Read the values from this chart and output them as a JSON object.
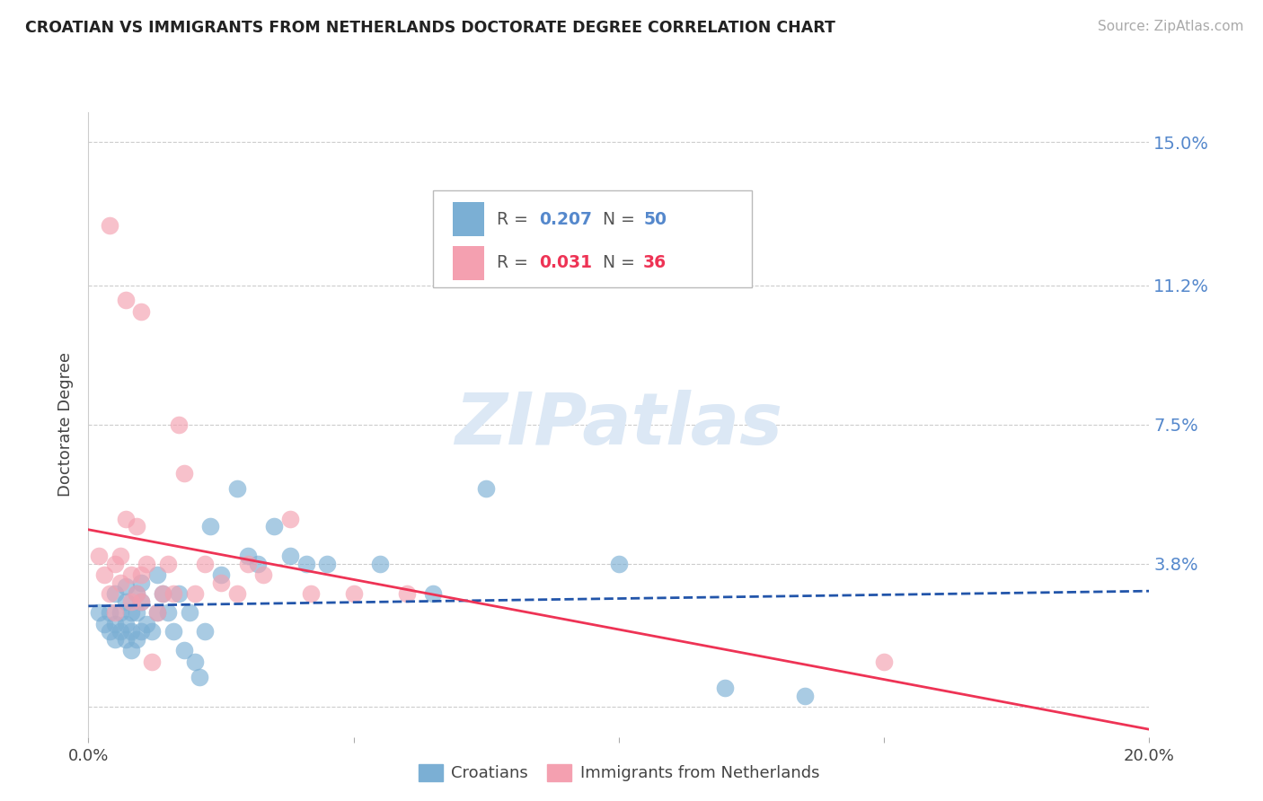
{
  "title": "CROATIAN VS IMMIGRANTS FROM NETHERLANDS DOCTORATE DEGREE CORRELATION CHART",
  "source": "Source: ZipAtlas.com",
  "ylabel": "Doctorate Degree",
  "xlim": [
    0.0,
    0.2
  ],
  "ylim": [
    -0.008,
    0.158
  ],
  "yticks": [
    0.0,
    0.038,
    0.075,
    0.112,
    0.15
  ],
  "ytick_labels": [
    "",
    "3.8%",
    "7.5%",
    "11.2%",
    "15.0%"
  ],
  "xticks": [
    0.0,
    0.05,
    0.1,
    0.15,
    0.2
  ],
  "xtick_labels": [
    "0.0%",
    "",
    "",
    "",
    "20.0%"
  ],
  "grid_color": "#cccccc",
  "background_color": "#ffffff",
  "croatians_color": "#7bafd4",
  "netherlands_color": "#f4a0b0",
  "trend_croatians_color": "#2255aa",
  "trend_netherlands_color": "#ee3355",
  "legend_R_croatians": "0.207",
  "legend_N_croatians": "50",
  "legend_R_netherlands": "0.031",
  "legend_N_netherlands": "36",
  "croatians_x": [
    0.002,
    0.003,
    0.004,
    0.004,
    0.005,
    0.005,
    0.005,
    0.006,
    0.006,
    0.007,
    0.007,
    0.007,
    0.007,
    0.008,
    0.008,
    0.008,
    0.009,
    0.009,
    0.009,
    0.01,
    0.01,
    0.01,
    0.011,
    0.012,
    0.013,
    0.013,
    0.014,
    0.015,
    0.016,
    0.017,
    0.018,
    0.019,
    0.02,
    0.021,
    0.022,
    0.023,
    0.025,
    0.028,
    0.03,
    0.032,
    0.035,
    0.038,
    0.041,
    0.045,
    0.055,
    0.065,
    0.075,
    0.1,
    0.12,
    0.135
  ],
  "croatians_y": [
    0.025,
    0.022,
    0.02,
    0.025,
    0.018,
    0.022,
    0.03,
    0.02,
    0.025,
    0.018,
    0.022,
    0.028,
    0.032,
    0.015,
    0.02,
    0.025,
    0.018,
    0.025,
    0.03,
    0.02,
    0.028,
    0.033,
    0.022,
    0.02,
    0.025,
    0.035,
    0.03,
    0.025,
    0.02,
    0.03,
    0.015,
    0.025,
    0.012,
    0.008,
    0.02,
    0.048,
    0.035,
    0.058,
    0.04,
    0.038,
    0.048,
    0.04,
    0.038,
    0.038,
    0.038,
    0.03,
    0.058,
    0.038,
    0.005,
    0.003
  ],
  "netherlands_x": [
    0.002,
    0.003,
    0.004,
    0.005,
    0.005,
    0.006,
    0.006,
    0.007,
    0.008,
    0.008,
    0.009,
    0.009,
    0.01,
    0.01,
    0.011,
    0.012,
    0.013,
    0.014,
    0.015,
    0.016,
    0.017,
    0.018,
    0.02,
    0.022,
    0.025,
    0.028,
    0.03,
    0.033,
    0.038,
    0.042,
    0.05,
    0.06,
    0.15,
    0.004,
    0.007,
    0.01
  ],
  "netherlands_y": [
    0.04,
    0.035,
    0.03,
    0.038,
    0.025,
    0.04,
    0.033,
    0.05,
    0.028,
    0.035,
    0.03,
    0.048,
    0.035,
    0.028,
    0.038,
    0.012,
    0.025,
    0.03,
    0.038,
    0.03,
    0.075,
    0.062,
    0.03,
    0.038,
    0.033,
    0.03,
    0.038,
    0.035,
    0.05,
    0.03,
    0.03,
    0.03,
    0.012,
    0.128,
    0.108,
    0.105
  ],
  "watermark": "ZIPatlas",
  "watermark_color": "#dce8f5"
}
